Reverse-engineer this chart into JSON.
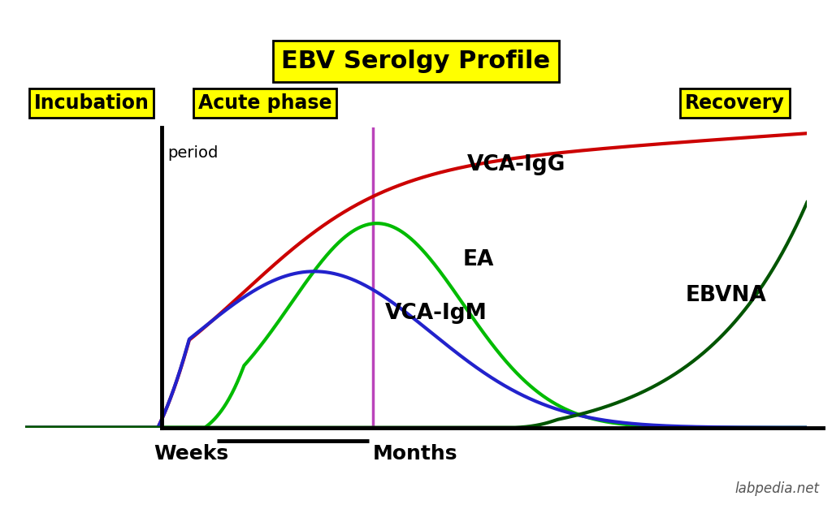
{
  "title": "EBV Serolgy Profile",
  "title_fontsize": 22,
  "title_bg": "#FFFF00",
  "background_color": "#FFFFFF",
  "xlabel_weeks": "Weeks",
  "xlabel_months": "Months",
  "ylabel_period": "period",
  "phase_bg": "#FFFF00",
  "curve_colors": {
    "VCA-IgG": "#CC0000",
    "EA": "#00BB00",
    "VCA-IgM": "#2222CC",
    "EBVNA": "#005500"
  },
  "vline_color": "#BB44BB",
  "text_color": "#000000",
  "watermark": "labpedia.net",
  "lw": 3.0
}
